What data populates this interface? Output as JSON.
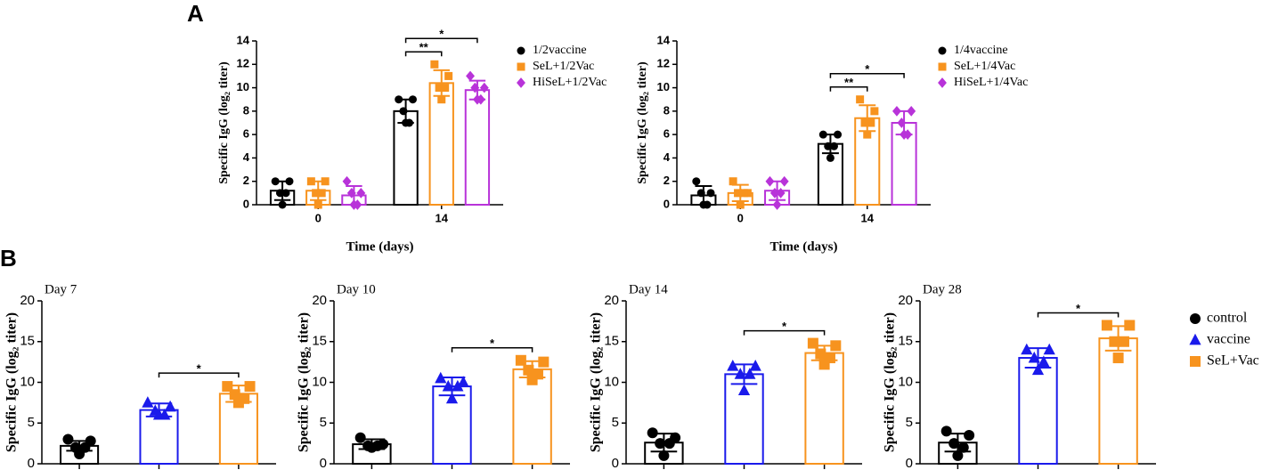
{
  "panels": [
    "A",
    "B"
  ],
  "chart_data": [
    {
      "type": "bar",
      "ylabel": "Specific IgG (log₂ titer)",
      "xlabel": "Time (days)",
      "categories": [
        "0",
        "14"
      ],
      "ylim": [
        0,
        14
      ],
      "yticks": [
        0,
        2,
        4,
        6,
        8,
        10,
        12,
        14
      ],
      "legend": "right",
      "series": [
        {
          "name": "1/2vaccine",
          "color": "#000000",
          "marker": "circle",
          "values": [
            1.2,
            8
          ],
          "errors": [
            0.8,
            1
          ],
          "points": [
            [
              2,
              2,
              1,
              1,
              0
            ],
            [
              9,
              9,
              8,
              7,
              7
            ]
          ]
        },
        {
          "name": "SeL+1/2Vac",
          "color": "#f7931e",
          "marker": "square",
          "values": [
            1.2,
            10.4
          ],
          "errors": [
            0.8,
            1.1
          ],
          "points": [
            [
              2,
              2,
              1,
              1,
              0
            ],
            [
              12,
              11,
              10,
              10,
              9
            ]
          ]
        },
        {
          "name": "HiSeL+1/2Vac",
          "color": "#b833d9",
          "marker": "diamond",
          "values": [
            0.8,
            9.8
          ],
          "errors": [
            0.8,
            0.8
          ],
          "points": [
            [
              2,
              1,
              1,
              0,
              0
            ],
            [
              11,
              10,
              10,
              9,
              9
            ]
          ]
        }
      ],
      "annotations": [
        {
          "text": "**",
          "category": 1,
          "between": [
            0,
            1
          ]
        },
        {
          "text": "*",
          "category": 1,
          "between": [
            0,
            2
          ]
        }
      ]
    },
    {
      "type": "bar",
      "ylabel": "Specific IgG (log₂ titer)",
      "xlabel": "Time (days)",
      "categories": [
        "0",
        "14"
      ],
      "ylim": [
        0,
        14
      ],
      "yticks": [
        0,
        2,
        4,
        6,
        8,
        10,
        12,
        14
      ],
      "legend": "right",
      "series": [
        {
          "name": "1/4vaccine",
          "color": "#000000",
          "marker": "circle",
          "values": [
            0.8,
            5.2
          ],
          "errors": [
            0.8,
            0.8
          ],
          "points": [
            [
              2,
              1,
              1,
              0,
              0
            ],
            [
              6,
              6,
              5,
              5,
              4
            ]
          ]
        },
        {
          "name": "SeL+1/4Vac",
          "color": "#f7931e",
          "marker": "square",
          "values": [
            1,
            7.4
          ],
          "errors": [
            0.7,
            1.1
          ],
          "points": [
            [
              2,
              1,
              1,
              1,
              0
            ],
            [
              9,
              8,
              7,
              7,
              6
            ]
          ]
        },
        {
          "name": "HiSeL+1/4Vac",
          "color": "#b833d9",
          "marker": "diamond",
          "values": [
            1.2,
            7
          ],
          "errors": [
            0.8,
            1
          ],
          "points": [
            [
              2,
              2,
              1,
              1,
              0
            ],
            [
              8,
              8,
              7,
              6,
              6
            ]
          ]
        }
      ],
      "annotations": [
        {
          "text": "**",
          "category": 1,
          "between": [
            0,
            1
          ]
        },
        {
          "text": "*",
          "category": 1,
          "between": [
            0,
            2
          ]
        }
      ]
    },
    {
      "type": "bar",
      "title": "Day 7",
      "ylabel": "Specific IgG (log₂ titer)",
      "categories": [
        null
      ],
      "ylim": [
        0,
        20
      ],
      "yticks": [
        0,
        5,
        10,
        15,
        20
      ],
      "series": [
        {
          "color": "#000000",
          "marker": "circle",
          "values": [
            2.2
          ],
          "errors": [
            0.6
          ],
          "points": [
            [
              3,
              2.8,
              2,
              2,
              1.2
            ]
          ]
        },
        {
          "color": "#1a1aeb",
          "marker": "triangle",
          "values": [
            6.6
          ],
          "errors": [
            0.8
          ],
          "points": [
            [
              7.5,
              7,
              6.5,
              6,
              6
            ]
          ]
        },
        {
          "color": "#f7931e",
          "marker": "square",
          "values": [
            8.6
          ],
          "errors": [
            1
          ],
          "points": [
            [
              9.5,
              9.5,
              8.5,
              8,
              7.5
            ]
          ]
        }
      ],
      "annotations": [
        {
          "text": "*",
          "category": 0,
          "between": [
            1,
            2
          ]
        }
      ]
    },
    {
      "type": "bar",
      "title": "Day 10",
      "ylabel": "Specific IgG (log₂ titer)",
      "categories": [
        null
      ],
      "ylim": [
        0,
        20
      ],
      "yticks": [
        0,
        5,
        10,
        15,
        20
      ],
      "series": [
        {
          "color": "#000000",
          "marker": "circle",
          "values": [
            2.4
          ],
          "errors": [
            0.6
          ],
          "points": [
            [
              3.2,
              2.4,
              2.2,
              2.2,
              2
            ]
          ]
        },
        {
          "color": "#1a1aeb",
          "marker": "triangle",
          "values": [
            9.5
          ],
          "errors": [
            1.1
          ],
          "points": [
            [
              10.5,
              10,
              9.5,
              9.5,
              8
            ]
          ]
        },
        {
          "color": "#f7931e",
          "marker": "square",
          "values": [
            11.6
          ],
          "errors": [
            1
          ],
          "points": [
            [
              12.7,
              12.5,
              11.5,
              11,
              10.3
            ]
          ]
        }
      ],
      "annotations": [
        {
          "text": "*",
          "category": 0,
          "between": [
            1,
            2
          ]
        }
      ]
    },
    {
      "type": "bar",
      "title": "Day 14",
      "ylabel": "Specific IgG (log₂ titer)",
      "categories": [
        null
      ],
      "ylim": [
        0,
        20
      ],
      "yticks": [
        0,
        5,
        10,
        15,
        20
      ],
      "series": [
        {
          "color": "#000000",
          "marker": "circle",
          "values": [
            2.6
          ],
          "errors": [
            1.1
          ],
          "points": [
            [
              3.8,
              3.2,
              2.5,
              2.5,
              1
            ]
          ]
        },
        {
          "color": "#1a1aeb",
          "marker": "triangle",
          "values": [
            11
          ],
          "errors": [
            1.2
          ],
          "points": [
            [
              12,
              12,
              11,
              11,
              9
            ]
          ]
        },
        {
          "color": "#f7931e",
          "marker": "square",
          "values": [
            13.6
          ],
          "errors": [
            0.9
          ],
          "points": [
            [
              14.8,
              14.5,
              13.5,
              13,
              12.2
            ]
          ]
        }
      ],
      "annotations": [
        {
          "text": "*",
          "category": 0,
          "between": [
            1,
            2
          ]
        }
      ]
    },
    {
      "type": "bar",
      "title": "Day 28",
      "ylabel": "Specific IgG (log₂ titer)",
      "categories": [
        null
      ],
      "ylim": [
        0,
        20
      ],
      "yticks": [
        0,
        5,
        10,
        15,
        20
      ],
      "legend": "right",
      "series": [
        {
          "name": "control",
          "color": "#000000",
          "marker": "circle",
          "values": [
            2.6
          ],
          "errors": [
            1.1
          ],
          "points": [
            [
              4,
              3.5,
              2.5,
              2,
              1
            ]
          ]
        },
        {
          "name": "vaccine",
          "color": "#1a1aeb",
          "marker": "triangle",
          "values": [
            13
          ],
          "errors": [
            1.2
          ],
          "points": [
            [
              14,
              14,
              13,
              12.5,
              11.5
            ]
          ]
        },
        {
          "name": "SeL+Vac",
          "color": "#f7931e",
          "marker": "square",
          "values": [
            15.4
          ],
          "errors": [
            1.5
          ],
          "points": [
            [
              17,
              17,
              15,
              15,
              13
            ]
          ]
        }
      ],
      "annotations": [
        {
          "text": "*",
          "category": 0,
          "between": [
            1,
            2
          ]
        }
      ]
    }
  ]
}
